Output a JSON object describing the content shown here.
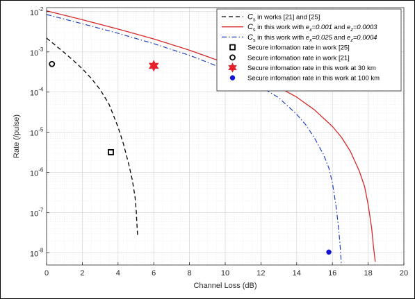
{
  "chart_data": {
    "type": "line",
    "title": "",
    "xlabel": "Channel Loss (dB)",
    "ylabel": "Rate (/pulse)",
    "xlim": [
      0,
      20
    ],
    "ylim_log10": [
      -8.3,
      -1.9
    ],
    "yscale": "log",
    "grid": true,
    "minor_grid": true,
    "legend_position": "top-right",
    "x_ticks": [
      0,
      2,
      4,
      6,
      8,
      10,
      12,
      14,
      16,
      18,
      20
    ],
    "x_tick_labels": [
      "0",
      "2",
      "4",
      "6",
      "8",
      "10",
      "12",
      "14",
      "16",
      "18",
      "20"
    ],
    "y_ticks_exp": [
      -8,
      -7,
      -6,
      -5,
      -4,
      -3,
      -2
    ],
    "y_tick_labels": [
      {
        "base": "10",
        "exp": "-8"
      },
      {
        "base": "10",
        "exp": "-7"
      },
      {
        "base": "10",
        "exp": "-6"
      },
      {
        "base": "10",
        "exp": "-5"
      },
      {
        "base": "10",
        "exp": "-4"
      },
      {
        "base": "10",
        "exp": "-3"
      },
      {
        "base": "10",
        "exp": "-2"
      }
    ],
    "series": [
      {
        "legend": {
          "pre": "",
          "sym": "C",
          "sub": "s",
          "mid": " in works [21] and [25]",
          "v1": "",
          "s1": "",
          "val1": "",
          "mid2": "",
          "v2": "",
          "s2": "",
          "val2": ""
        },
        "color": "#000000",
        "dash": "6,4",
        "width": 1.3,
        "x": [
          0,
          0.5,
          1,
          1.5,
          2,
          2.5,
          3,
          3.5,
          4,
          4.3,
          4.6,
          4.8,
          4.95,
          5.02,
          5.05,
          5.08,
          5.1
        ],
        "y": [
          0.0022,
          0.00145,
          0.00095,
          0.00061,
          0.00038,
          0.00022,
          0.000115,
          4.95e-05,
          1.35e-05,
          5.2e-06,
          1.6e-06,
          6.5e-07,
          2.5e-07,
          1.1e-07,
          6e-08,
          3.5e-08,
          2.6e-08
        ]
      },
      {
        "legend": {
          "pre": "",
          "sym": "C",
          "sub": "s",
          "mid": " in this work with ",
          "v1": "e",
          "s1": "x",
          "val1": "=0.001",
          "mid2": " and ",
          "v2": "e",
          "s2": "z",
          "val2": "=0.0003"
        },
        "color": "#d62728",
        "dash": "",
        "width": 1.3,
        "x": [
          0,
          2,
          4,
          6,
          8,
          10,
          12,
          14,
          15,
          16,
          16.5,
          17,
          17.5,
          17.8,
          18,
          18.2,
          18.3,
          18.4
        ],
        "y": [
          0.0105,
          0.0063,
          0.0037,
          0.0021,
          0.0011,
          0.00053,
          0.00023,
          7.5e-05,
          3.6e-05,
          1.4e-05,
          7.6e-06,
          3.4e-06,
          1.1e-06,
          4.5e-07,
          1.6e-07,
          4e-08,
          1.4e-08,
          6e-09
        ]
      },
      {
        "legend": {
          "pre": "",
          "sym": "C",
          "sub": "s",
          "mid": " in this work with ",
          "v1": "e",
          "s1": "x",
          "val1": "=0.025",
          "mid2": " and ",
          "v2": "e",
          "s2": "z",
          "val2": "=0.0004"
        },
        "color": "#1f3fbf",
        "dash": "7,3,1.5,3",
        "width": 1.2,
        "x": [
          0,
          2,
          4,
          6,
          8,
          10,
          12,
          13,
          14,
          14.5,
          15,
          15.5,
          15.8,
          16,
          16.2,
          16.35,
          16.45,
          16.5
        ],
        "y": [
          0.0085,
          0.005,
          0.0029,
          0.0016,
          0.00082,
          0.00037,
          0.000135,
          7.2e-05,
          2.8e-05,
          1.55e-05,
          7.2e-06,
          2.8e-06,
          1.3e-06,
          5.5e-07,
          1.5e-07,
          4e-08,
          1.2e-08,
          5e-09
        ]
      }
    ],
    "points": [
      {
        "legend": "Secure infomation rate in work [25]",
        "marker": "square",
        "color": "#000000",
        "x": 3.6,
        "y": 3.2e-06
      },
      {
        "legend": "Secure infomation rate in work [21]",
        "marker": "circle-open",
        "color": "#000000",
        "x": 0.3,
        "y": 0.0005
      },
      {
        "legend": "Secure infomation rate in this work at 30 km",
        "marker": "hexagram",
        "color": "#e8202a",
        "x": 6.0,
        "y": 0.00045
      },
      {
        "legend": "Secure infomation rate in this work at 100 km",
        "marker": "circle-filled",
        "color": "#1414d8",
        "x": 15.8,
        "y": 1.05e-08
      }
    ]
  }
}
